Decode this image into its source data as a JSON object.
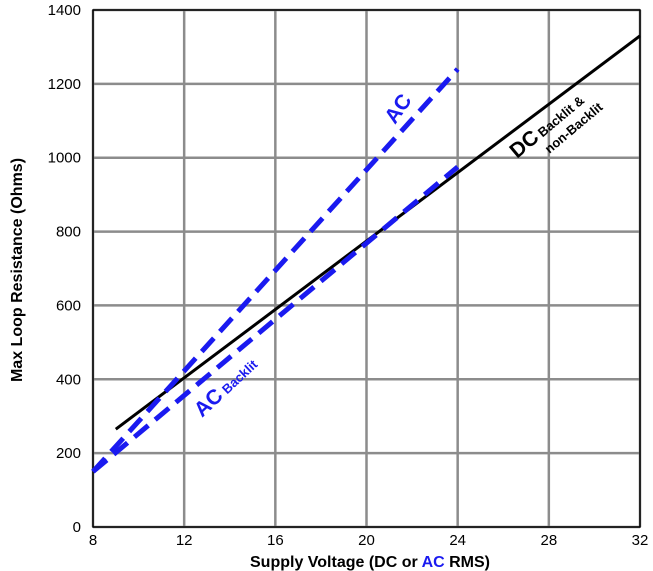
{
  "chart_data": {
    "type": "line",
    "xlabel_parts": [
      "Supply Voltage (DC or ",
      "AC",
      " RMS)"
    ],
    "ylabel": "Max Loop Resistance (Ohms)",
    "xlim": [
      8,
      32
    ],
    "ylim": [
      0,
      1400
    ],
    "x_ticks": [
      8,
      12,
      16,
      20,
      24,
      28,
      32
    ],
    "y_ticks": [
      0,
      200,
      400,
      600,
      800,
      1000,
      1200,
      1400
    ],
    "grid": true,
    "series": [
      {
        "key": "dc",
        "color": "#000000",
        "style": "solid",
        "x": [
          9,
          32
        ],
        "y": [
          265,
          1330
        ]
      },
      {
        "key": "ac",
        "color": "#1a1af0",
        "style": "dashed",
        "x": [
          8,
          24
        ],
        "y": [
          150,
          1240
        ]
      },
      {
        "key": "ac_backlit",
        "color": "#1a1af0",
        "style": "dashed",
        "x": [
          8,
          24
        ],
        "y": [
          150,
          975
        ]
      }
    ],
    "annotations": {
      "ac": {
        "text": "AC"
      },
      "ac_backlit": {
        "big": "AC",
        "small": "Backlit"
      },
      "dc": {
        "big": "DC",
        "small1": "Backlit &",
        "small2": "non-Backlit"
      }
    },
    "colors": {
      "grid": "#8c8c8c",
      "accent": "#1a1af0",
      "dc": "#000000"
    }
  }
}
